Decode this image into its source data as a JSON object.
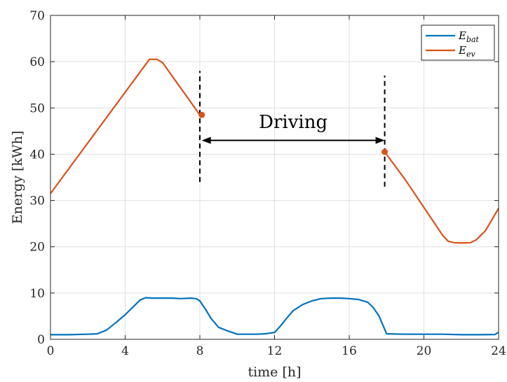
{
  "chart_data": {
    "type": "line",
    "xlabel": "time [h]",
    "ylabel": "Energy [kWh]",
    "xlim": [
      0,
      24
    ],
    "ylim": [
      0,
      70
    ],
    "xticks": [
      0,
      4,
      8,
      12,
      16,
      20,
      24
    ],
    "yticks": [
      0,
      10,
      20,
      30,
      40,
      50,
      60,
      70
    ],
    "grid": true,
    "legend_position": "top-right",
    "series": [
      {
        "name": "E_bat",
        "legend_main": "E",
        "legend_sub": "bat",
        "color": "#0072BD",
        "x": [
          0,
          1,
          2,
          2.5,
          3,
          3.5,
          4,
          4.5,
          4.8,
          5.1,
          5.5,
          6,
          6.5,
          7,
          7.5,
          7.8,
          8,
          8.3,
          8.6,
          9,
          9.5,
          10,
          11,
          11.5,
          12,
          12.3,
          12.7,
          13,
          13.5,
          14,
          14.5,
          15,
          15.5,
          16,
          16.5,
          17,
          17.3,
          17.6,
          18,
          19,
          20,
          21,
          22,
          23,
          23.8,
          24
        ],
        "y": [
          1,
          1,
          1.1,
          1.2,
          2,
          3.6,
          5.3,
          7.3,
          8.5,
          9,
          8.9,
          8.9,
          8.9,
          8.8,
          8.9,
          8.8,
          8.3,
          6.5,
          4.5,
          2.6,
          1.8,
          1.1,
          1.1,
          1.2,
          1.5,
          2.8,
          4.8,
          6.2,
          7.5,
          8.3,
          8.8,
          8.9,
          8.9,
          8.8,
          8.6,
          8,
          6.8,
          5,
          1.2,
          1.1,
          1.1,
          1.1,
          1,
          1,
          1.05,
          1.5
        ]
      },
      {
        "name": "E_ev",
        "legend_main": "E",
        "legend_sub": "ev",
        "color": "#D95319",
        "x": [
          0,
          5.3,
          5.7,
          6,
          8,
          8.2
        ],
        "y": [
          31.5,
          60.5,
          60.5,
          59.8,
          48.5,
          48.5
        ],
        "x2": [
          17.9,
          19,
          20,
          21,
          21.3,
          21.6,
          22,
          22.5,
          22.8,
          23.3,
          24
        ],
        "y2": [
          40.5,
          34.5,
          28.5,
          22.5,
          21.2,
          20.9,
          20.8,
          20.9,
          21.5,
          23.5,
          28.3
        ]
      }
    ],
    "annotations": [
      {
        "text": "Driving",
        "x_from": 8.1,
        "x_to": 17.9,
        "y_arrow": 43,
        "y_text": 47
      }
    ],
    "vlines": [
      {
        "x": 8.0,
        "y_from": 34,
        "y_to": 58
      },
      {
        "x": 17.9,
        "y_from": 33,
        "y_to": 57
      }
    ],
    "markers": [
      {
        "x": 8.1,
        "y": 48.5,
        "color": "#D95319"
      },
      {
        "x": 17.9,
        "y": 40.5,
        "color": "#D95319"
      }
    ]
  }
}
